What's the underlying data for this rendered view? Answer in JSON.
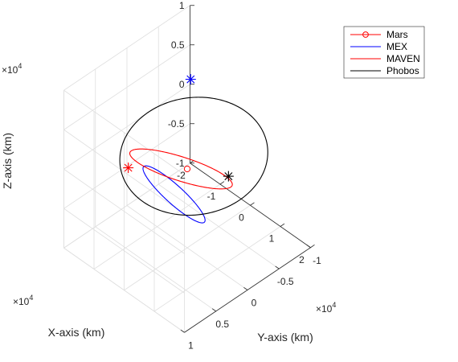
{
  "chart_data": {
    "type": "line",
    "view": "3d",
    "grid": true,
    "box": true,
    "legend_position": "top-right",
    "x_axis": {
      "label": "X-axis (km)",
      "multiplier": "×10",
      "exponent": "4",
      "ticks": [
        -2,
        -1,
        0,
        1,
        2
      ],
      "tick_labels": [
        "-2",
        "-1",
        "0",
        "1",
        "2"
      ],
      "range": [
        -2,
        2
      ]
    },
    "y_axis": {
      "label": "Y-axis (km)",
      "multiplier": "×10",
      "exponent": "4",
      "ticks": [
        -1,
        -0.5,
        0,
        0.5,
        1
      ],
      "tick_labels": [
        "-1",
        "-0.5",
        "0",
        "0.5",
        "1"
      ],
      "range": [
        -1,
        1
      ]
    },
    "z_axis": {
      "label": "Z-axis (km)",
      "multiplier": "×10",
      "exponent": "4",
      "ticks": [
        -1,
        -0.5,
        0,
        0.5,
        1
      ],
      "tick_labels": [
        "-1",
        "-0.5",
        "0",
        "0.5",
        "1"
      ],
      "range": [
        -1,
        1
      ]
    },
    "series": [
      {
        "name": "Mars",
        "kind": "point",
        "marker": "circle",
        "color": "#ff0000",
        "x": [
          0
        ],
        "y": [
          0
        ],
        "z": [
          0
        ]
      },
      {
        "name": "MEX",
        "kind": "orbit",
        "color": "#0000ff",
        "center": [
          0.4,
          0.4,
          0.0
        ],
        "u": [
          -0.25,
          0.35,
          0.48
        ],
        "v": [
          0.1,
          -0.1,
          0.02
        ],
        "marker": {
          "type": "asterisk",
          "x": -1.1,
          "y": -0.58,
          "z": 0.53
        }
      },
      {
        "name": "MAVEN",
        "kind": "orbit",
        "color": "#ff0000",
        "center": [
          -0.1,
          0.05,
          0.0
        ],
        "u": [
          -0.55,
          0.55,
          0.35
        ],
        "v": [
          0.08,
          0.06,
          -0.1
        ],
        "marker": {
          "type": "asterisk",
          "x": -0.7,
          "y": 0.6,
          "z": 0.15
        }
      },
      {
        "name": "Phobos",
        "kind": "orbit",
        "color": "#000000",
        "center": [
          -0.2,
          -0.2,
          0.0
        ],
        "u": [
          -0.85,
          0.3,
          0.5
        ],
        "v": [
          0.6,
          -0.65,
          0.3
        ],
        "marker": {
          "type": "asterisk",
          "x": -0.41,
          "y": -0.85,
          "z": -0.66
        }
      }
    ]
  }
}
